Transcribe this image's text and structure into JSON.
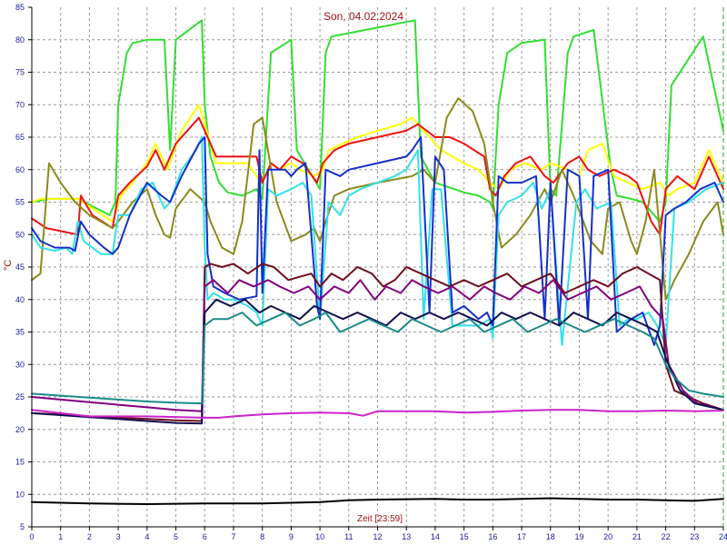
{
  "chart_data": {
    "type": "line",
    "title": "Son, 04.02.2024",
    "xlabel": "Zeit [23:59]",
    "ylabel": "°C",
    "xlim": [
      0,
      24
    ],
    "ylim": [
      5,
      85
    ],
    "xticks": [
      0,
      1,
      2,
      3,
      4,
      5,
      6,
      7,
      8,
      9,
      10,
      11,
      12,
      13,
      14,
      15,
      16,
      17,
      18,
      19,
      20,
      21,
      22,
      23,
      24
    ],
    "yticks": [
      5,
      10,
      15,
      20,
      25,
      30,
      35,
      40,
      45,
      50,
      55,
      60,
      65,
      70,
      75,
      80,
      85
    ],
    "grid": true,
    "colors": {
      "axis": "#000000",
      "grid": "#9a9a9a",
      "tick_text": "#1a1aa0",
      "label_text": "#a01414",
      "end_marker": "#2aa82a"
    },
    "series": [
      {
        "color": "#33dd33",
        "x": [
          0,
          0.6,
          1.6,
          2.7,
          2.9,
          3.0,
          3.3,
          3.5,
          4.0,
          4.6,
          4.8,
          5.0,
          5.9,
          6.0,
          6.2,
          6.5,
          6.8,
          7.3,
          7.8,
          8.0,
          8.3,
          9.0,
          9.2,
          10.0,
          10.2,
          10.4,
          13.3,
          13.5,
          14.0,
          15.0,
          15.5,
          15.9,
          16.0,
          16.2,
          16.5,
          17.0,
          17.8,
          18.0,
          18.2,
          18.6,
          18.8,
          19.5,
          20.1,
          20.3,
          20.8,
          21.2,
          21.8,
          22.0,
          22.2,
          23.3,
          24.0
        ],
        "y": [
          55,
          55.5,
          55.5,
          53,
          55,
          70,
          78,
          79.5,
          80,
          80,
          63,
          80,
          83,
          70,
          62,
          58,
          56.5,
          56,
          57,
          55.5,
          78,
          80,
          63,
          57,
          78,
          80.5,
          83,
          62,
          58,
          56.5,
          56,
          55,
          54,
          70,
          78,
          79.5,
          80,
          57,
          56,
          78,
          80.5,
          81.5,
          60,
          56,
          55.5,
          55,
          52,
          55,
          73,
          80.5,
          66
        ]
      },
      {
        "color": "#ffff00",
        "x": [
          0,
          0.3,
          1.6,
          2.8,
          3.1,
          3.5,
          4.0,
          4.3,
          4.7,
          5.2,
          5.8,
          6.0,
          6.4,
          7.0,
          7.5,
          7.8,
          8.0,
          8.3,
          8.6,
          9.0,
          9.3,
          9.8,
          10.1,
          10.3,
          10.8,
          11.3,
          12.0,
          12.8,
          13.2,
          13.8,
          14.2,
          15.0,
          15.5,
          15.9,
          16.2,
          16.6,
          17.1,
          17.7,
          18.0,
          18.6,
          19.0,
          19.3,
          19.8,
          20.2,
          20.7,
          21.2,
          21.8,
          22.1,
          22.4,
          23.0,
          23.5,
          24.0
        ],
        "y": [
          55,
          55.5,
          55.5,
          52,
          56,
          58,
          61,
          64,
          60,
          66,
          70,
          67,
          61,
          61,
          61,
          59,
          58,
          61,
          60,
          61,
          60,
          59,
          60,
          63,
          64,
          65,
          66,
          67,
          68,
          65,
          63,
          61,
          60,
          58,
          57,
          60,
          61,
          60,
          61,
          60,
          59,
          63,
          64,
          59,
          58,
          57,
          58,
          56,
          57,
          58,
          63,
          58
        ]
      },
      {
        "color": "#ee1111",
        "x": [
          0,
          0.5,
          1.6,
          1.7,
          2.1,
          2.8,
          3.0,
          3.4,
          4.0,
          4.3,
          4.6,
          5.0,
          5.8,
          6.0,
          6.4,
          6.9,
          7.5,
          7.8,
          8.0,
          8.3,
          8.6,
          9.0,
          9.4,
          9.9,
          10.1,
          10.5,
          11.0,
          12.0,
          13.0,
          13.4,
          14.0,
          14.5,
          15.0,
          15.7,
          15.9,
          16.1,
          16.4,
          16.8,
          17.3,
          17.8,
          18.1,
          18.6,
          19.0,
          19.3,
          19.7,
          20.2,
          20.7,
          21.0,
          21.5,
          21.8,
          22.0,
          22.4,
          23.0,
          23.5,
          24.0
        ],
        "y": [
          52.5,
          51,
          50,
          56,
          53,
          51,
          56,
          58,
          60.5,
          63,
          60,
          64,
          68,
          66,
          62,
          62,
          62,
          62,
          58,
          61,
          60,
          62,
          61,
          58,
          61,
          63,
          64,
          65,
          66,
          67,
          65,
          65,
          64,
          62,
          57,
          56,
          59,
          61,
          62,
          59,
          58,
          61,
          62,
          60,
          59,
          60,
          59,
          58,
          52,
          50,
          57,
          59,
          57,
          62,
          57
        ]
      },
      {
        "color": "#8a8a1a",
        "x": [
          0,
          0.3,
          0.6,
          1.0,
          1.5,
          2.0,
          2.8,
          3.0,
          3.5,
          4.0,
          4.3,
          4.6,
          4.8,
          5.0,
          5.5,
          6.0,
          6.2,
          6.6,
          7.0,
          7.3,
          7.7,
          8.0,
          8.5,
          9.0,
          9.5,
          9.8,
          10.0,
          10.2,
          10.5,
          11.0,
          12.0,
          13.2,
          13.6,
          14.0,
          14.4,
          14.8,
          15.3,
          15.7,
          16.0,
          16.3,
          16.8,
          17.3,
          17.8,
          18.0,
          18.4,
          18.8,
          19.4,
          19.8,
          20.0,
          20.4,
          20.8,
          21.0,
          21.3,
          21.6,
          22.0,
          22.3,
          22.8,
          23.3,
          23.8,
          24.0
        ],
        "y": [
          43,
          44,
          61,
          58,
          55,
          53,
          51,
          52,
          55,
          57,
          53,
          50,
          49.5,
          54,
          57,
          55,
          52,
          48,
          47,
          52,
          67,
          68,
          55,
          49,
          50,
          51,
          49,
          52,
          56,
          57,
          58,
          59,
          60,
          58,
          68,
          71,
          69,
          64,
          55,
          48,
          50,
          53,
          57,
          55,
          60,
          56,
          49,
          47,
          54,
          55,
          49,
          47,
          52,
          60,
          40,
          43,
          47,
          52,
          55,
          50
        ]
      },
      {
        "color": "#33e0e8",
        "x": [
          0,
          0.3,
          0.8,
          1.2,
          1.4,
          1.6,
          1.8,
          2.4,
          2.8,
          3.0,
          3.4,
          3.8,
          4.2,
          4.6,
          4.8,
          5.2,
          5.7,
          5.9,
          6.0,
          6.1,
          6.3,
          6.7,
          7.0,
          7.5,
          7.8,
          8.0,
          8.2,
          8.5,
          9.0,
          9.4,
          9.7,
          10.0,
          10.3,
          10.7,
          11.0,
          11.4,
          12.0,
          12.6,
          13.0,
          13.4,
          13.6,
          13.9,
          14.2,
          14.6,
          15.0,
          15.5,
          15.9,
          16.0,
          16.2,
          16.5,
          17.0,
          17.4,
          17.7,
          18.0,
          18.4,
          18.9,
          19.2,
          19.6,
          20.1,
          20.4,
          20.7,
          21.0,
          21.4,
          21.7,
          22.0,
          22.3,
          22.8,
          23.4,
          24.0
        ],
        "y": [
          50,
          48,
          47.5,
          48,
          47,
          52,
          49,
          47,
          47,
          53,
          53,
          57,
          58,
          54,
          55,
          60,
          63,
          65,
          48,
          40,
          41,
          40,
          40,
          39,
          38,
          36,
          57,
          56,
          57,
          58,
          56,
          37,
          55,
          53,
          56,
          57,
          58,
          59,
          60,
          63,
          37,
          57,
          57,
          36,
          36,
          36,
          37,
          34,
          53,
          55,
          56,
          58,
          54,
          57,
          33,
          55,
          57,
          54,
          55,
          36,
          37,
          37,
          38,
          36,
          33,
          54,
          55,
          57,
          58
        ]
      },
      {
        "color": "#1530c8",
        "x": [
          0,
          0.3,
          0.8,
          1.3,
          1.5,
          1.7,
          2.0,
          2.5,
          2.8,
          3.0,
          3.4,
          4.0,
          4.5,
          4.8,
          5.2,
          5.8,
          6.0,
          6.1,
          6.3,
          6.7,
          7.2,
          7.8,
          7.9,
          8.0,
          8.2,
          8.8,
          9.0,
          9.2,
          9.5,
          9.9,
          10.0,
          10.2,
          10.7,
          11.0,
          12.0,
          13.0,
          13.2,
          13.5,
          13.8,
          14.0,
          14.3,
          14.6,
          15.0,
          15.5,
          15.8,
          16.0,
          16.2,
          16.5,
          17.0,
          17.5,
          17.8,
          18.0,
          18.3,
          18.6,
          19.0,
          19.3,
          19.5,
          20.0,
          20.3,
          20.8,
          21.2,
          21.6,
          21.8,
          22.0,
          22.3,
          22.7,
          23.2,
          23.7,
          24.0
        ],
        "y": [
          51,
          49,
          48,
          48,
          47.5,
          52,
          50,
          48,
          47,
          48,
          53,
          58,
          56,
          55,
          59,
          64,
          65,
          47,
          42,
          41,
          40,
          40.5,
          63,
          41,
          60,
          60,
          59,
          60,
          61,
          39,
          37,
          60,
          59,
          60,
          61,
          62,
          63,
          65,
          38,
          62,
          60,
          38,
          39,
          37,
          38,
          36,
          59,
          58,
          58,
          59,
          37,
          58,
          36,
          60,
          59,
          37,
          59,
          60,
          35,
          37,
          38,
          33,
          36,
          53,
          54,
          55,
          57,
          58,
          55
        ]
      },
      {
        "color": "#6e0e1e",
        "x": [
          0,
          1,
          2,
          3,
          4,
          5,
          5.9,
          6.0,
          6.2,
          6.6,
          7.0,
          7.5,
          8.0,
          8.4,
          8.9,
          9.3,
          9.7,
          10.0,
          10.4,
          10.8,
          11.3,
          11.8,
          12.2,
          12.6,
          13.0,
          13.5,
          14.0,
          14.5,
          15.0,
          15.5,
          16.0,
          16.5,
          17.0,
          17.5,
          18.0,
          18.5,
          19.0,
          19.5,
          20.0,
          20.5,
          21.0,
          21.4,
          21.8,
          22.0,
          22.3,
          22.8,
          23.3,
          24.0
        ],
        "y": [
          22.5,
          22.3,
          22.0,
          21.8,
          21.6,
          21.4,
          21.3,
          45,
          45.5,
          45,
          45.5,
          44,
          45.5,
          45,
          43,
          43.5,
          44,
          42,
          44,
          43,
          45,
          44,
          42,
          43,
          45,
          44,
          43,
          42,
          43,
          42,
          43,
          44,
          42,
          43,
          44,
          41,
          42,
          43,
          42,
          44,
          45,
          44,
          43,
          30,
          26,
          25,
          24,
          23
        ]
      },
      {
        "color": "#800080",
        "x": [
          0,
          1,
          2,
          3,
          4,
          5,
          5.9,
          6.0,
          6.3,
          6.8,
          7.2,
          7.7,
          8.2,
          8.6,
          9.1,
          9.6,
          10.0,
          10.5,
          11.0,
          11.4,
          11.9,
          12.3,
          12.8,
          13.2,
          13.6,
          14.1,
          14.6,
          15.2,
          15.7,
          16.1,
          16.6,
          17.1,
          17.6,
          18.1,
          18.6,
          19.1,
          19.6,
          20.1,
          20.6,
          21.1,
          21.5,
          21.9,
          22.1,
          22.6,
          23.1,
          24.0
        ],
        "y": [
          25,
          24.6,
          24.2,
          23.8,
          23.4,
          23.0,
          22.8,
          42,
          43,
          41,
          43,
          42,
          43,
          42,
          41,
          42,
          40,
          42,
          41,
          43,
          40,
          42,
          41,
          43,
          42,
          41,
          42,
          40,
          42,
          41,
          40,
          42,
          41,
          43,
          40,
          41,
          42,
          40,
          41,
          42,
          39,
          37,
          30,
          26,
          24,
          23
        ]
      },
      {
        "color": "#101050",
        "x": [
          0,
          1,
          2,
          3,
          4,
          5,
          5.9,
          6.0,
          6.4,
          6.9,
          7.4,
          7.9,
          8.3,
          8.8,
          9.3,
          9.8,
          10.3,
          10.8,
          11.3,
          11.8,
          12.3,
          12.8,
          13.3,
          13.8,
          14.3,
          14.8,
          15.3,
          15.8,
          16.3,
          16.8,
          17.3,
          17.8,
          18.3,
          18.8,
          19.3,
          19.8,
          20.3,
          20.8,
          21.3,
          21.7,
          22.0,
          22.5,
          23.0,
          24.0
        ],
        "y": [
          22.5,
          22.2,
          21.9,
          21.6,
          21.3,
          21.0,
          20.9,
          38,
          40,
          39,
          40,
          38,
          39,
          38,
          37,
          39,
          38,
          37,
          38,
          37,
          36,
          38,
          37,
          38,
          37,
          38,
          37,
          36,
          38,
          37,
          38,
          37,
          36,
          38,
          37,
          36,
          38,
          37,
          36,
          35,
          31,
          26,
          24,
          23
        ]
      },
      {
        "color": "#1a8a8a",
        "x": [
          0,
          1,
          2,
          3,
          4,
          5,
          5.9,
          6.0,
          6.3,
          6.8,
          7.3,
          7.8,
          8.3,
          8.8,
          9.3,
          9.8,
          10.2,
          10.7,
          11.2,
          11.7,
          12.2,
          12.7,
          13.2,
          13.7,
          14.2,
          14.7,
          15.2,
          15.7,
          16.2,
          16.7,
          17.2,
          17.7,
          18.2,
          18.7,
          19.2,
          19.7,
          20.2,
          20.7,
          21.2,
          21.6,
          22.0,
          22.3,
          22.8,
          23.3,
          24.0
        ],
        "y": [
          25.5,
          25.2,
          24.9,
          24.6,
          24.3,
          24.1,
          24.0,
          36,
          37,
          37,
          38,
          36,
          37,
          38,
          36,
          37,
          38,
          35,
          36,
          37,
          36,
          35,
          37,
          36,
          35,
          36,
          37,
          35,
          36,
          37,
          35,
          36,
          37,
          36,
          35,
          36,
          37,
          36,
          35,
          34,
          30,
          28,
          26,
          25.5,
          25
        ]
      },
      {
        "color": "#cc22cc",
        "x": [
          0,
          2,
          4,
          6,
          6.5,
          7,
          8,
          9,
          10,
          11,
          11.5,
          12,
          13,
          14,
          15,
          16,
          17,
          18,
          18.5,
          19,
          20,
          21,
          22,
          23,
          24
        ],
        "y": [
          23,
          22,
          22,
          21.8,
          21.8,
          22,
          22.3,
          22.5,
          22.6,
          22.5,
          22.1,
          22.8,
          22.8,
          22.8,
          22.6,
          22.7,
          22.9,
          23,
          23,
          23,
          22.8,
          22.8,
          22.9,
          22.8,
          22.9
        ]
      },
      {
        "color": "#000000",
        "x": [
          0,
          2,
          4,
          6,
          8,
          10,
          11,
          12,
          14,
          15,
          16,
          17,
          18,
          19,
          20,
          21,
          22,
          23,
          24
        ],
        "y": [
          8.8,
          8.6,
          8.5,
          8.6,
          8.6,
          8.8,
          9.1,
          9.2,
          9.3,
          9.2,
          9.2,
          9.3,
          9.4,
          9.3,
          9.2,
          9.2,
          9.1,
          9.0,
          9.3
        ]
      }
    ]
  }
}
